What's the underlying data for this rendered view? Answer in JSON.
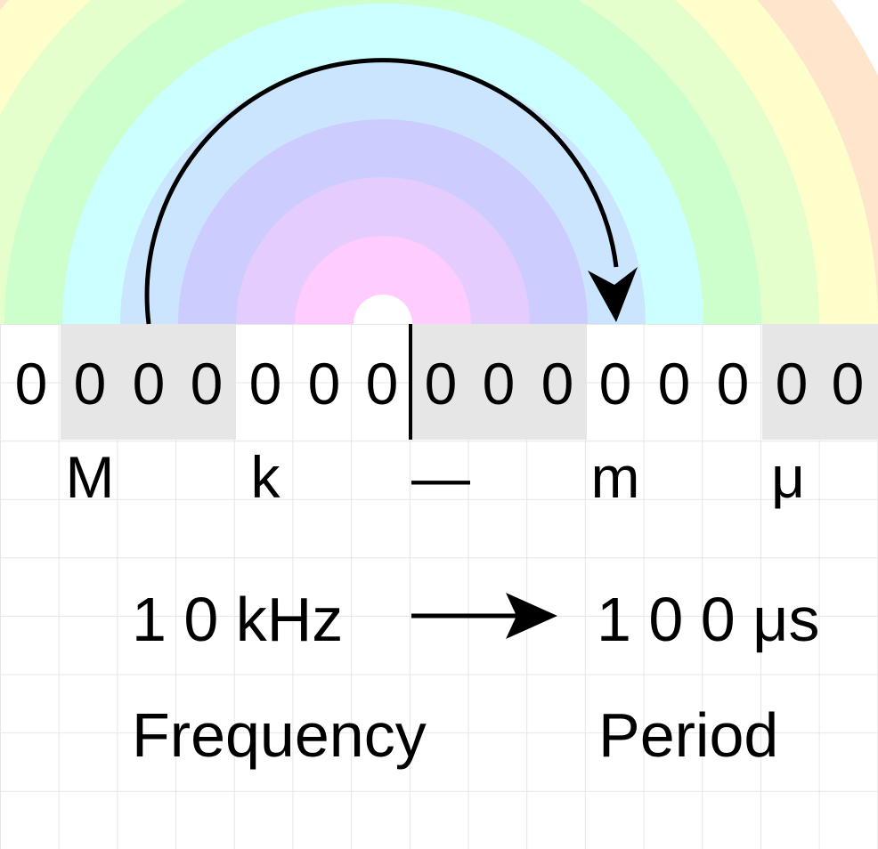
{
  "colors": {
    "rings": [
      "#ffccff",
      "#e5ccff",
      "#ccccff",
      "#cce5ff",
      "#ccffff",
      "#ccffcc",
      "#e5ffcc",
      "#ffffcc",
      "#ffe5cc"
    ],
    "shade": "#e6e6e6",
    "ink": "#000000"
  },
  "digits": [
    "0",
    "0",
    "0",
    "0",
    "0",
    "0",
    "0",
    "0",
    "0",
    "0",
    "0",
    "0",
    "0",
    "0",
    "0"
  ],
  "prefixes": {
    "mega": "M",
    "kilo": "k",
    "unit": "—",
    "milli": "m",
    "micro": "μ"
  },
  "conversion": {
    "from_value": "1 0 kHz",
    "to_value": "1 0 0 μs",
    "from_label": "Frequency",
    "to_label": "Period"
  }
}
